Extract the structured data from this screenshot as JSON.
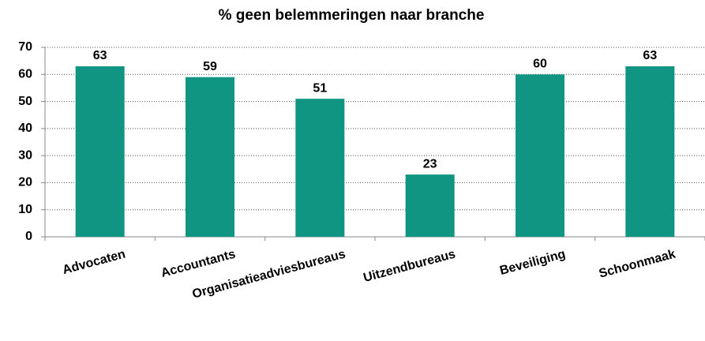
{
  "chart_data": {
    "type": "bar",
    "title": "% geen belemmeringen naar branche",
    "categories": [
      "Advocaten",
      "Accountants",
      "Organisatieadviesbureaus",
      "Uitzendbureaus",
      "Beveiliging",
      "Schoonmaak"
    ],
    "values": [
      63,
      59,
      51,
      23,
      60,
      63
    ],
    "color": "#0f9582",
    "ylim": [
      0,
      70
    ],
    "yticks": [
      0,
      10,
      20,
      30,
      40,
      50,
      60,
      70
    ],
    "grid": true
  }
}
